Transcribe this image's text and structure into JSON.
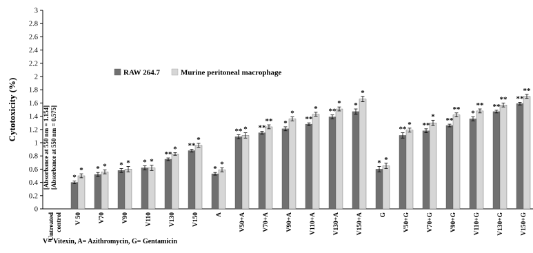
{
  "chart_data": {
    "type": "bar",
    "ylabel": "Cytotoxicity (%)",
    "xlabel": "",
    "ylim": [
      0,
      3
    ],
    "y_ticks": [
      "0",
      "0.2",
      "0.4",
      "0.6",
      "0.8",
      "1",
      "1.2",
      "1.4",
      "1.6",
      "1.8",
      "2",
      "2.2",
      "2.4",
      "2.6",
      "2.8",
      "3"
    ],
    "legend_placement": "top-left",
    "grid": false,
    "categories": [
      "Untreated control",
      "V 50",
      "V70",
      "V90",
      "V110",
      "V130",
      "V150",
      "A",
      "V50+A",
      "V70+A",
      "V90+A",
      "V110+A",
      "V130+A",
      "V150+A",
      "G",
      "V50+G",
      "V70+G",
      "V90+G",
      "V110+G",
      "V130+G",
      "V150+G"
    ],
    "series": [
      {
        "name": "RAW 264.7",
        "color": "#707070",
        "values": [
          null,
          0.4,
          0.52,
          0.58,
          0.62,
          0.75,
          0.88,
          0.53,
          1.09,
          1.15,
          1.21,
          1.28,
          1.39,
          1.47,
          0.6,
          1.11,
          1.18,
          1.26,
          1.36,
          1.47,
          1.59
        ],
        "errors": [
          null,
          0.02,
          0.03,
          0.03,
          0.03,
          0.02,
          0.02,
          0.02,
          0.03,
          0.02,
          0.03,
          0.02,
          0.03,
          0.04,
          0.04,
          0.04,
          0.03,
          0.02,
          0.03,
          0.02,
          0.02
        ],
        "markers": [
          "",
          "*",
          "*",
          "*",
          "*",
          "**",
          "**",
          "*",
          "**",
          "**",
          "*",
          "**",
          "**",
          "*",
          "*",
          "**",
          "**",
          "**",
          "*",
          "**",
          "**"
        ]
      },
      {
        "name": "Murine peritoneal macrophage",
        "color": "#d6d6d6",
        "values": [
          null,
          0.5,
          0.56,
          0.6,
          0.62,
          0.83,
          0.96,
          0.59,
          1.11,
          1.24,
          1.36,
          1.43,
          1.51,
          1.66,
          0.65,
          1.19,
          1.3,
          1.42,
          1.48,
          1.57,
          1.7
        ],
        "errors": [
          null,
          0.03,
          0.03,
          0.04,
          0.04,
          0.02,
          0.03,
          0.03,
          0.04,
          0.03,
          0.03,
          0.03,
          0.03,
          0.04,
          0.04,
          0.03,
          0.04,
          0.03,
          0.03,
          0.03,
          0.03
        ],
        "markers": [
          "",
          "*",
          "*",
          "*",
          "*",
          "*",
          "*",
          "*",
          "*",
          "**",
          "*",
          "*",
          "*",
          "*",
          "*",
          "*",
          "*",
          "**",
          "**",
          "**",
          "**"
        ]
      }
    ],
    "annotations": [
      "[Absorbance at 550 nm = 1.154]",
      "[Absorbance at 550 nm = 0.575]"
    ]
  },
  "footnote": "V= Vitexin, A= Azithromycin, G= Gentamicin"
}
